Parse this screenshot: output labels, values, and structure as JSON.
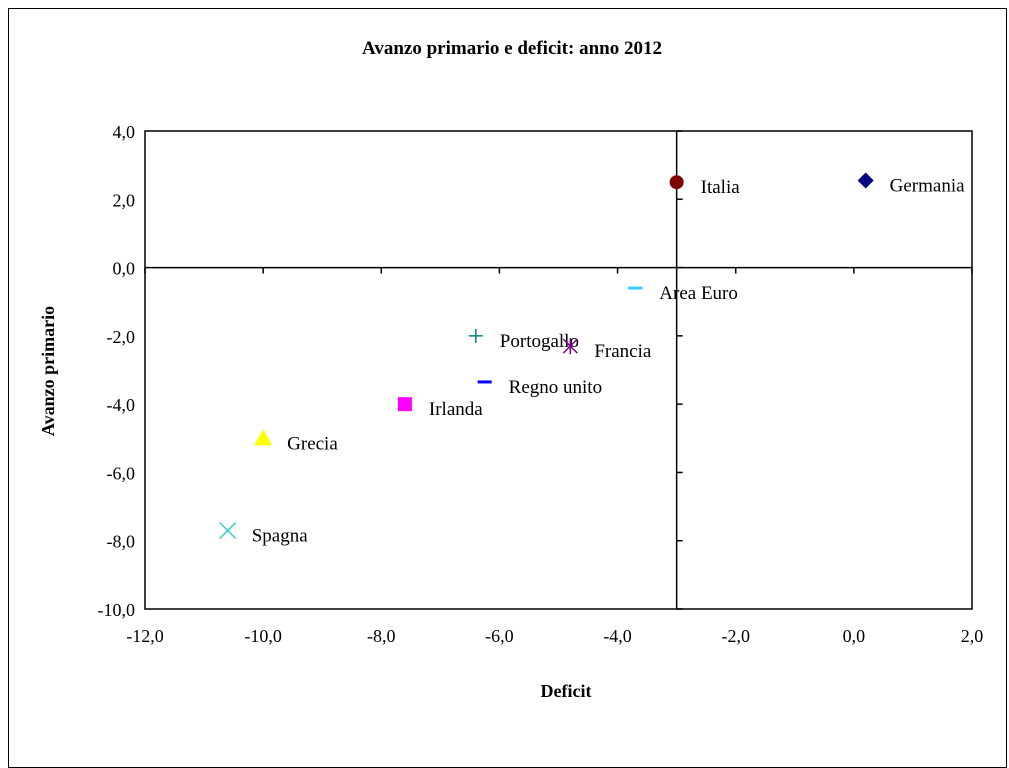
{
  "chart_data": {
    "type": "scatter",
    "title": "Avanzo  primario  e deficit: anno 2012",
    "xlabel": "Deficit",
    "ylabel": "Avanzo primario",
    "xlim": [
      -12,
      2
    ],
    "ylim": [
      -10,
      4
    ],
    "x_ticks": [
      -12,
      -10,
      -8,
      -6,
      -4,
      -2,
      0,
      2
    ],
    "y_ticks": [
      4,
      2,
      0,
      -2,
      -4,
      -6,
      -8,
      -10
    ],
    "x_tick_labels": [
      "-12,0",
      "-10,0",
      "-8,0",
      "-6,0",
      "-4,0",
      "-2,0",
      "0,0",
      "2,0"
    ],
    "y_tick_labels": [
      "4,0",
      "2,0",
      "0,0",
      "-2,0",
      "-4,0",
      "-6,0",
      "-8,0",
      "-10,0"
    ],
    "x_axis_cross": -3.0,
    "y_axis_cross": 0.0,
    "grid": false,
    "legend": "none",
    "points": [
      {
        "label": "Italia",
        "x": -3.0,
        "y": 2.5,
        "marker": "circle",
        "color": "#800000"
      },
      {
        "label": "Germania",
        "x": 0.2,
        "y": 2.55,
        "marker": "diamond",
        "color": "#000080"
      },
      {
        "label": "Area Euro",
        "x": -3.7,
        "y": -0.6,
        "marker": "dash",
        "color": "#33CCFF"
      },
      {
        "label": "Portogallo",
        "x": -6.4,
        "y": -2.0,
        "marker": "plus",
        "color": "#008080"
      },
      {
        "label": "Francia",
        "x": -4.8,
        "y": -2.3,
        "marker": "star",
        "color": "#800080"
      },
      {
        "label": "Regno unito",
        "x": -6.25,
        "y": -3.35,
        "marker": "dash",
        "color": "#0000FF"
      },
      {
        "label": "Irlanda",
        "x": -7.6,
        "y": -4.0,
        "marker": "square",
        "color": "#FF00FF"
      },
      {
        "label": "Grecia",
        "x": -10.0,
        "y": -5.0,
        "marker": "triangle",
        "color": "#FFFF00"
      },
      {
        "label": "Spagna",
        "x": -10.6,
        "y": -7.7,
        "marker": "x",
        "color": "#33CCCC"
      }
    ]
  }
}
